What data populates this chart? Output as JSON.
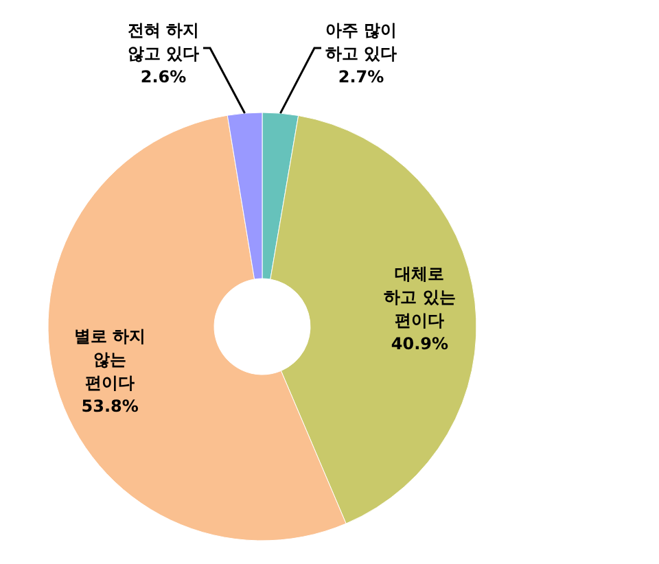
{
  "chart_data": {
    "type": "donut",
    "categories": [
      "아주 많이\n하고 있다",
      "대체로\n하고 있는\n편이다",
      "별로 하지\n않는\n편이다",
      "전혀 하지\n않고 있다"
    ],
    "values": [
      2.7,
      40.9,
      53.8,
      2.6
    ],
    "colors": [
      "#66c2bb",
      "#c9c96a",
      "#fac090",
      "#9999ff"
    ],
    "value_labels": [
      "2.7%",
      "40.9%",
      "53.8%",
      "2.6%"
    ]
  }
}
